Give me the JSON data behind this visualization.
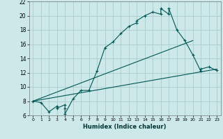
{
  "xlabel": "Humidex (Indice chaleur)",
  "bg_color": "#cce8e8",
  "grid_color": "#aacccc",
  "line_color": "#005555",
  "xlim": [
    -0.5,
    23.5
  ],
  "ylim": [
    6,
    22
  ],
  "xticks": [
    0,
    1,
    2,
    3,
    4,
    5,
    6,
    7,
    8,
    9,
    10,
    11,
    12,
    13,
    14,
    15,
    16,
    17,
    18,
    19,
    20,
    21,
    22,
    23
  ],
  "yticks": [
    6,
    8,
    10,
    12,
    14,
    16,
    18,
    20,
    22
  ],
  "curve1_x": [
    0,
    1,
    2,
    3,
    3,
    4,
    4,
    4,
    5,
    6,
    7,
    8,
    9,
    10,
    11,
    12,
    13,
    13,
    14,
    15,
    16,
    16,
    17,
    17,
    18,
    19,
    20,
    21,
    21,
    22,
    23
  ],
  "curve1_y": [
    8,
    7.8,
    6.5,
    7.3,
    7,
    7.5,
    7,
    6.2,
    8.3,
    9.5,
    9.5,
    12.2,
    15.5,
    16.3,
    17.5,
    18.5,
    19,
    19.3,
    20,
    20.5,
    20.2,
    21,
    20.2,
    21,
    18,
    16.5,
    14.5,
    12.2,
    12.5,
    12.8,
    12.3
  ],
  "curve2_x": [
    0,
    23
  ],
  "curve2_y": [
    8,
    12.5
  ],
  "curve3_x": [
    0,
    20
  ],
  "curve3_y": [
    8,
    16.5
  ],
  "markersize": 2.5
}
